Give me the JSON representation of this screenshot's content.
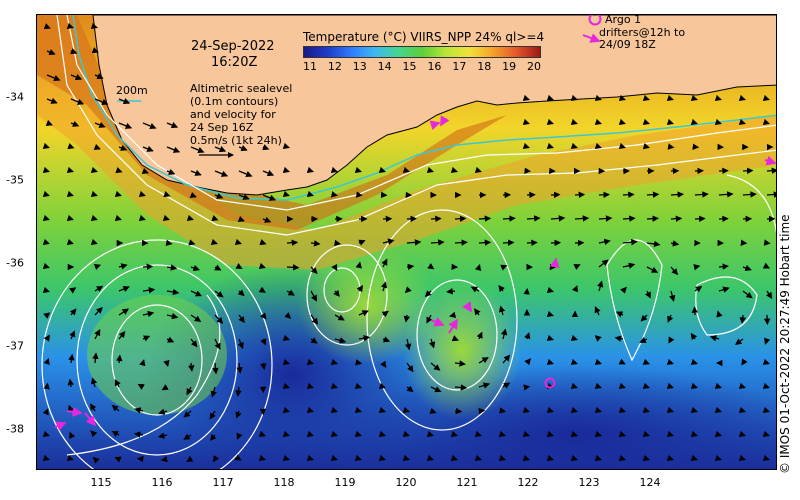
{
  "map": {
    "date": "24-Sep-2022",
    "time": "16:20Z",
    "contour_label": "200m",
    "legend_text": [
      "Altimetric sealevel",
      "(0.1m contours)",
      "and velocity for",
      "24 Sep 16Z",
      "0.5m/s (1kt 24h)"
    ],
    "colorbar": {
      "title": "Temperature (°C) VIIRS_NPP 24% ql>=4",
      "labels": [
        "11",
        "12",
        "13",
        "14",
        "15",
        "16",
        "17",
        "18",
        "19",
        "20"
      ]
    },
    "argo_label": "Argo 1",
    "drifter_label": [
      "drifters@12h to",
      "24/09 18Z"
    ],
    "lon_ticks": [
      "115",
      "116",
      "117",
      "118",
      "119",
      "120",
      "121",
      "122",
      "123",
      "124"
    ],
    "lat_ticks": [
      "-34",
      "-35",
      "-36",
      "-37",
      "-38"
    ],
    "credit": "© IMOS 01-Oct-2022 20:27:49 Hobart time",
    "colors": {
      "land": "#f7c69a",
      "coast": "#000000",
      "isobath": "#3cc8d2",
      "contour": "#ffffff",
      "drifter": "#e826e0"
    }
  }
}
